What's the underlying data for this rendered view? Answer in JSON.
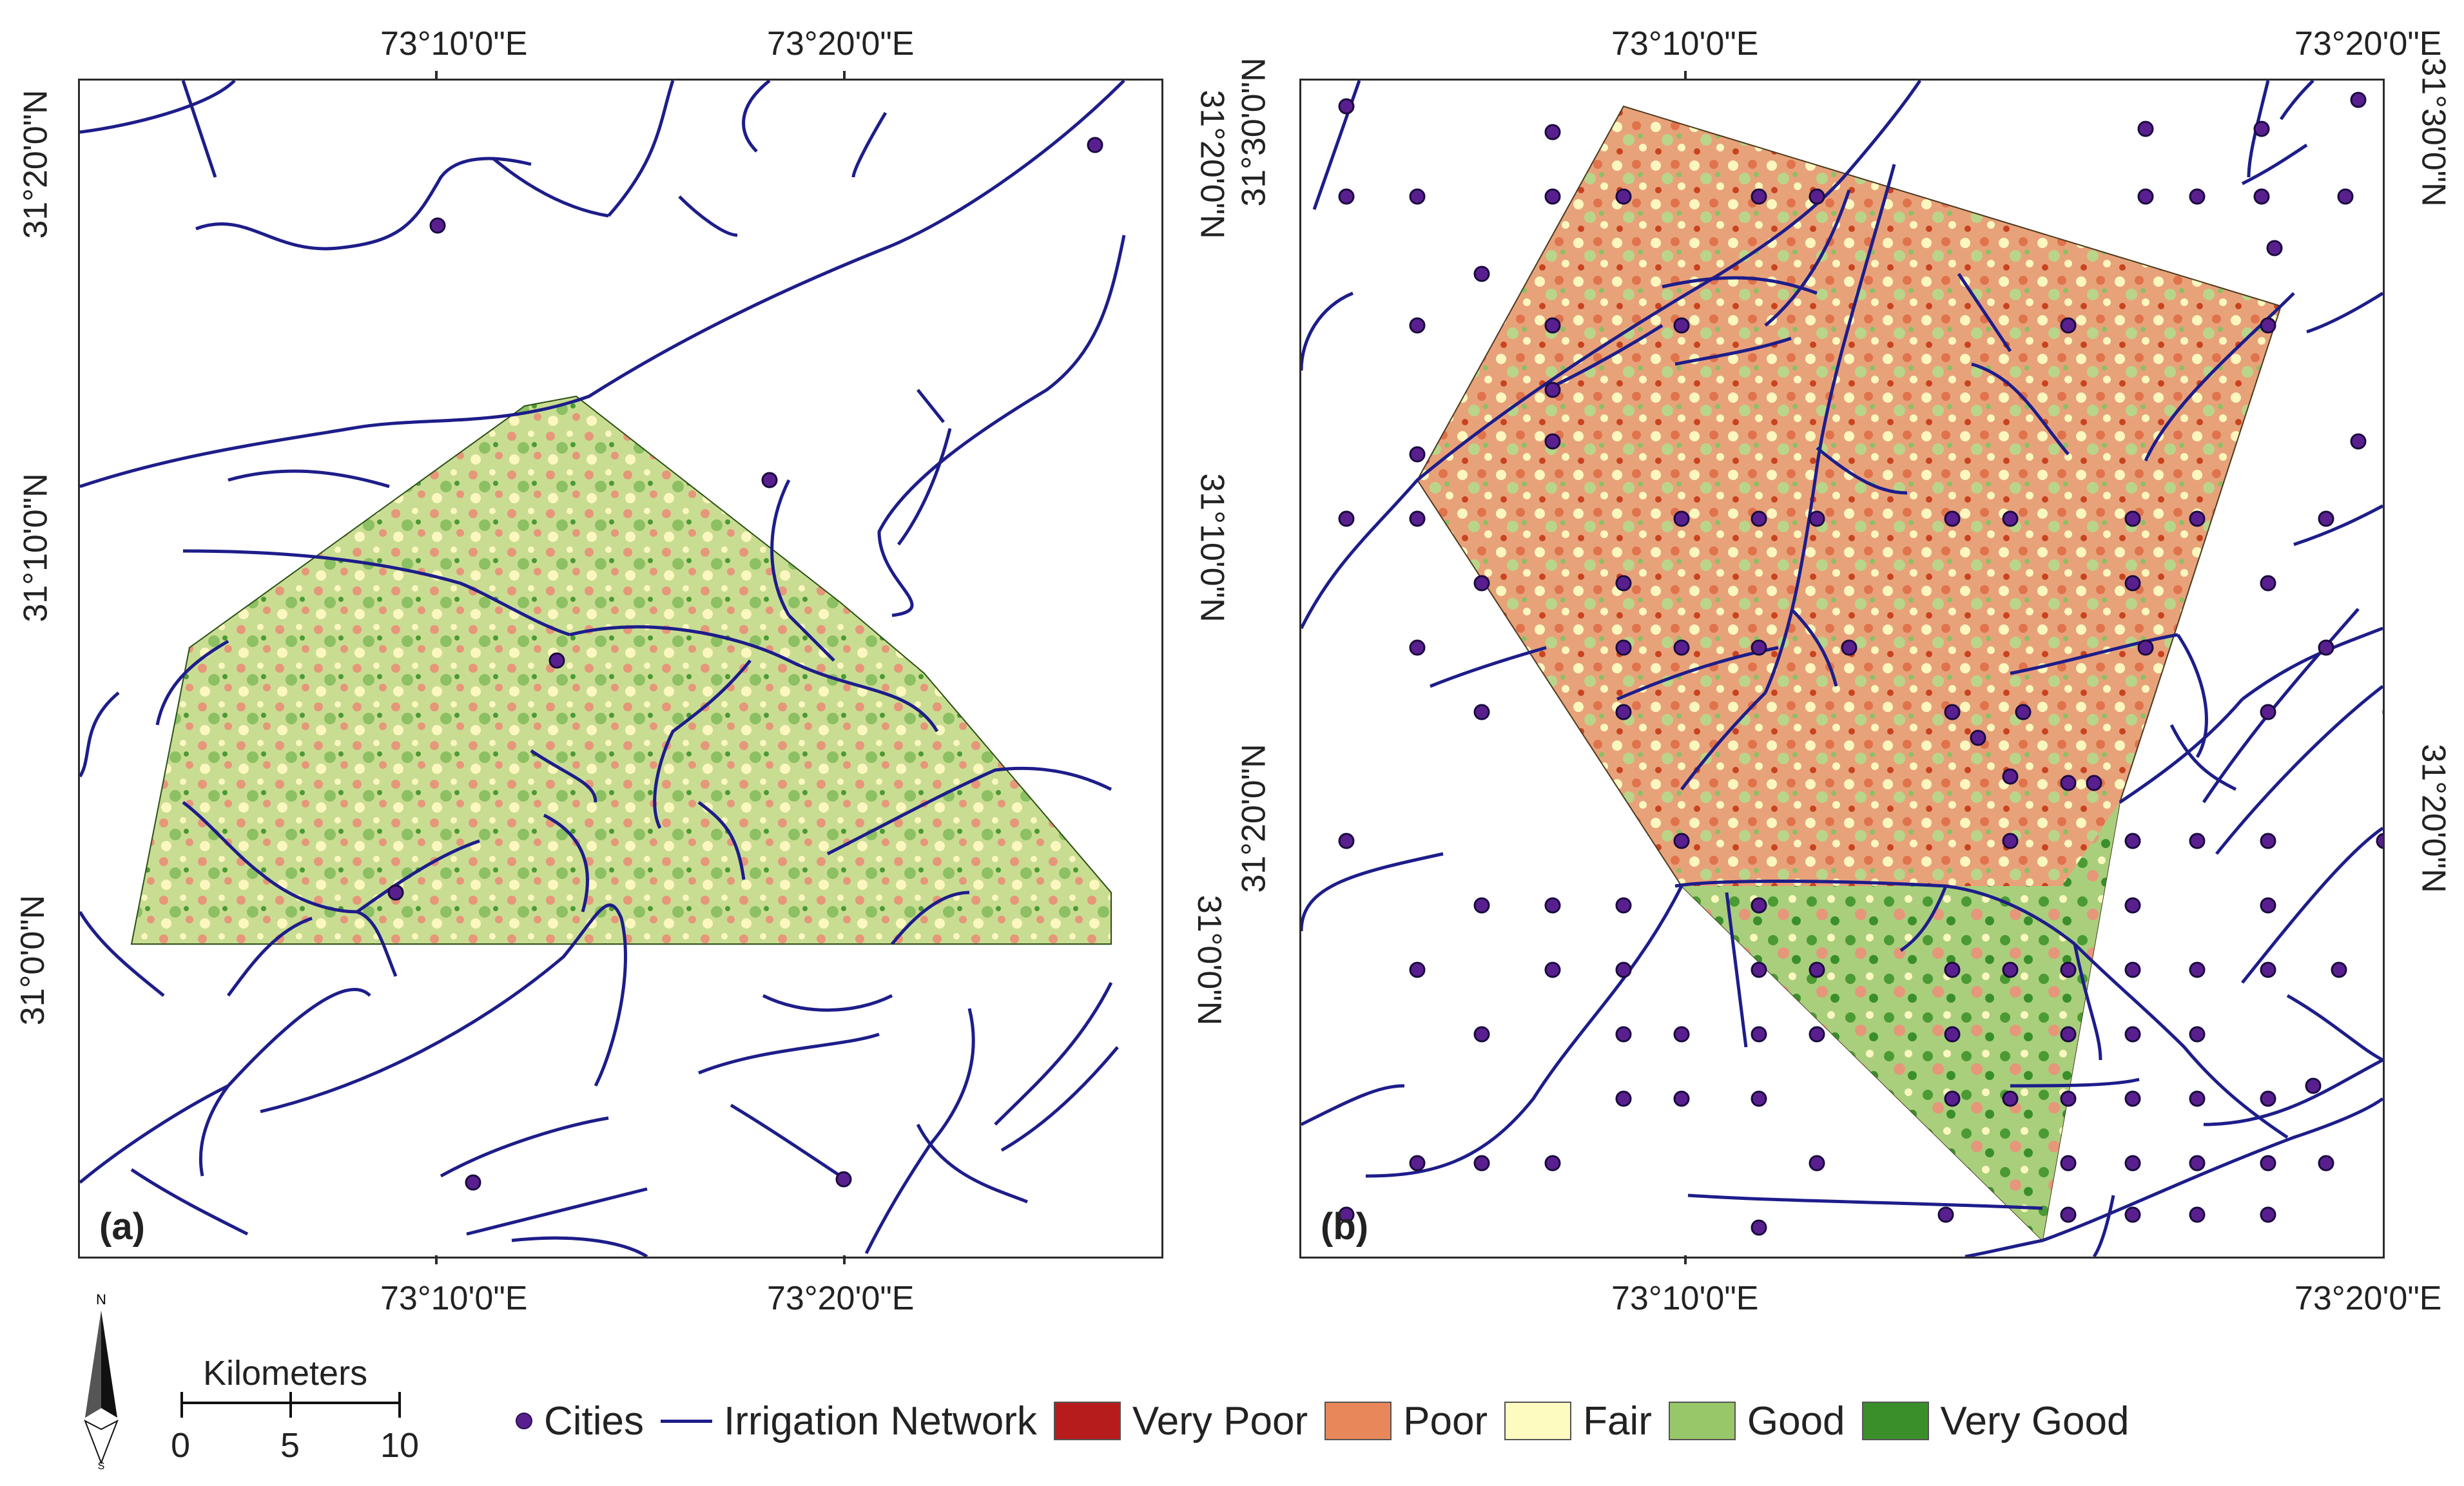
{
  "panels": {
    "a": {
      "tag": "(a)"
    },
    "b": {
      "tag": "(b)"
    }
  },
  "axis_labels": {
    "a_top": [
      "73°10'0\"E",
      "73°20'0\"E"
    ],
    "a_bottom": [
      "73°10'0\"E",
      "73°20'0\"E"
    ],
    "a_left": [
      "31°20'0\"N",
      "31°10'0\"N",
      "31°0'0\"N"
    ],
    "a_right": [
      "31°20'0\"N",
      "31°10'0\"N",
      "31°0'0\"N"
    ],
    "b_top": [
      "73°10'0\"E",
      "73°20'0\"E"
    ],
    "b_bottom": [
      "73°10'0\"E",
      "73°20'0\"E"
    ],
    "b_left": [
      "31°30'0\"N",
      "31°20'0\"N"
    ],
    "b_right": [
      "31°30'0\"N",
      "31°20'0\"N"
    ]
  },
  "legend": {
    "cities": "Cities",
    "irrigation": "Irrigation Network",
    "classes": [
      {
        "label": "Very Poor",
        "color": "#b71c1c"
      },
      {
        "label": "Poor",
        "color": "#e8875a"
      },
      {
        "label": "Fair",
        "color": "#fdfbc0"
      },
      {
        "label": "Good",
        "color": "#98c76a"
      },
      {
        "label": "Very Good",
        "color": "#3a8f2a"
      }
    ]
  },
  "scale": {
    "title": "Kilometers",
    "ticks": [
      "0",
      "5",
      "10"
    ]
  },
  "north": {
    "top": "N",
    "bottom": "S"
  },
  "colors": {
    "irrigation": "#1d1d8a",
    "city_fill": "#5a1f8f",
    "frame": "#2b2b2b"
  }
}
